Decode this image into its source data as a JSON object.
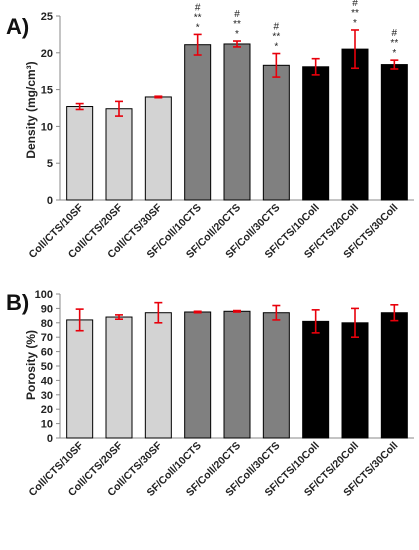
{
  "chart_data": [
    {
      "panel_label": "A)",
      "type": "bar",
      "ylabel": "Density (mg/cm³)",
      "ylim": [
        0,
        25
      ],
      "yticks": [
        0,
        5,
        10,
        15,
        20,
        25
      ],
      "grid": false,
      "categories": [
        "Coll/CTS/10SF",
        "Coll/CTS/20SF",
        "Coll/CTS/30SF",
        "SF/Coll/10CTS",
        "SF/Coll/20CTS",
        "SF/Coll/30CTS",
        "SF/CTS/10Coll",
        "SF/CTS/20Coll",
        "SF/CTS/30Coll"
      ],
      "values": [
        12.7,
        12.4,
        14.0,
        21.1,
        21.2,
        18.3,
        18.1,
        20.5,
        18.4
      ],
      "errors": [
        0.4,
        1.0,
        0.1,
        1.4,
        0.4,
        1.6,
        1.1,
        2.6,
        0.6
      ],
      "bar_colors": [
        "#d3d3d3",
        "#d3d3d3",
        "#d3d3d3",
        "#808080",
        "#808080",
        "#808080",
        "#000000",
        "#000000",
        "#000000"
      ],
      "error_color": "#e8000b",
      "annotations": [
        "",
        "",
        "",
        "#\n**\n*",
        "#\n**\n*",
        "#\n**\n*",
        "",
        "#\n**\n*",
        "#\n**\n*"
      ]
    },
    {
      "panel_label": "B)",
      "type": "bar",
      "ylabel": "Porosity (%)",
      "ylim": [
        0,
        100
      ],
      "yticks": [
        0,
        10,
        20,
        30,
        40,
        50,
        60,
        70,
        80,
        90,
        100
      ],
      "grid": false,
      "categories": [
        "Coll/CTS/10SF",
        "Coll/CTS/20SF",
        "Coll/CTS/30SF",
        "SF/Coll/10CTS",
        "SF/Coll/20CTS",
        "SF/Coll/30CTS",
        "SF/CTS/10Coll",
        "SF/CTS/20Coll",
        "SF/CTS/30Coll"
      ],
      "values": [
        82,
        84,
        87,
        87.5,
        88,
        87,
        81,
        80,
        87
      ],
      "errors": [
        7.5,
        1.5,
        7,
        0.5,
        0.5,
        5,
        8,
        10,
        5.5
      ],
      "bar_colors": [
        "#d3d3d3",
        "#d3d3d3",
        "#d3d3d3",
        "#808080",
        "#808080",
        "#808080",
        "#000000",
        "#000000",
        "#000000"
      ],
      "error_color": "#e8000b",
      "annotations": [
        "",
        "",
        "",
        "",
        "",
        "",
        "",
        "",
        ""
      ]
    }
  ]
}
